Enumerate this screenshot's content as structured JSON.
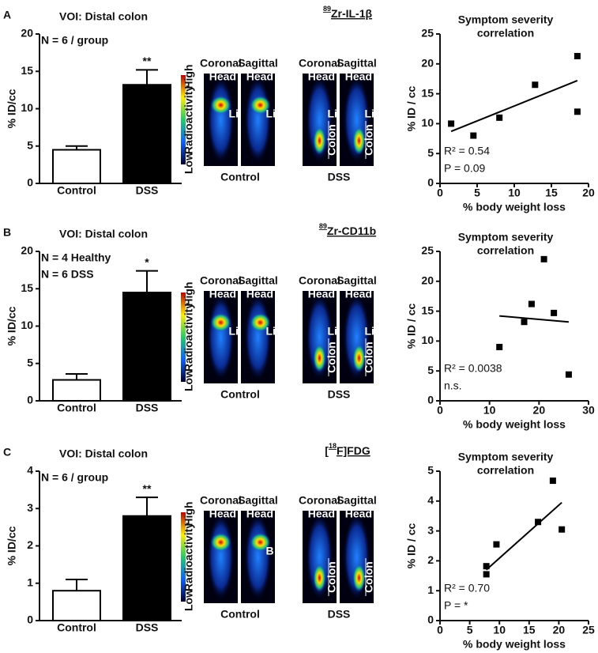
{
  "panels": [
    {
      "letter": "A",
      "isotope": "89",
      "tracer": "Zr-IL-1β",
      "groups": [
        "Control",
        "DSS"
      ],
      "colorbar": [
        "High",
        "Radioactivity",
        "Low"
      ],
      "images": [
        {
          "view": "Coronal",
          "tags": [
            "Head",
            "Li"
          ]
        },
        {
          "view": "Sagittal",
          "tags": [
            "Head",
            "Li"
          ]
        },
        {
          "view": "Coronal",
          "tags": [
            "Head",
            "Li",
            "Colon"
          ]
        },
        {
          "view": "Sagittal",
          "tags": [
            "Head",
            "Li",
            "Colon"
          ]
        }
      ]
    },
    {
      "letter": "B",
      "isotope": "89",
      "tracer": "Zr-CD11b",
      "groups": [
        "Control",
        "DSS"
      ],
      "colorbar": [
        "High",
        "Radioactivity",
        "Low"
      ],
      "images": [
        {
          "view": "Coronal",
          "tags": [
            "Head",
            "Li"
          ]
        },
        {
          "view": "Sagittal",
          "tags": [
            "Head",
            "Li"
          ]
        },
        {
          "view": "Coronal",
          "tags": [
            "Head",
            "Li",
            "Colon"
          ]
        },
        {
          "view": "Sagittal",
          "tags": [
            "Head",
            "Li",
            "Colon"
          ]
        }
      ]
    },
    {
      "letter": "C",
      "isotope": "18",
      "tracer": "F]FDG",
      "bracket": "[",
      "groups": [
        "Control",
        "DSS"
      ],
      "colorbar": [
        "High",
        "Radioactivity",
        "Low"
      ],
      "images": [
        {
          "view": "Coronal",
          "tags": [
            "Head"
          ]
        },
        {
          "view": "Sagittal",
          "tags": [
            "Head",
            "B"
          ]
        },
        {
          "view": "Coronal",
          "tags": [
            "Head",
            "Colon"
          ]
        },
        {
          "view": "Sagittal",
          "tags": [
            "Head",
            "Colon"
          ]
        }
      ]
    }
  ],
  "chart_data": [
    {
      "type": "bar",
      "title": "VOI: Distal colon",
      "notes": [
        "N = 6 / group"
      ],
      "ylabel": "% ID/cc",
      "categories": [
        "Control",
        "DSS"
      ],
      "values": [
        4.5,
        13.2
      ],
      "errors": [
        0.5,
        2.0
      ],
      "colors": [
        "#ffffff",
        "#000000"
      ],
      "significance": "**",
      "ylim": [
        0,
        20
      ],
      "yticks": [
        0,
        5,
        10,
        15,
        20
      ]
    },
    {
      "type": "scatter",
      "title": [
        "Symptom severity",
        "correlation"
      ],
      "xlabel": "% body weight loss",
      "ylabel": "% ID / cc",
      "x": [
        1.5,
        4.5,
        8,
        12.8,
        18.5,
        18.5
      ],
      "y": [
        10,
        8,
        11,
        16.5,
        21.3,
        12
      ],
      "fit": {
        "x": [
          1.5,
          18.5
        ],
        "y": [
          8.7,
          17.2
        ]
      },
      "annotations": [
        "R² = 0.54",
        "P = 0.09"
      ],
      "xlim": [
        0,
        20
      ],
      "xticks": [
        0,
        5,
        10,
        15,
        20
      ],
      "ylim": [
        0,
        25
      ],
      "yticks": [
        0,
        5,
        10,
        15,
        20,
        25
      ]
    },
    {
      "type": "bar",
      "title": "VOI: Distal colon",
      "notes": [
        "N = 4 Healthy",
        "N = 6 DSS"
      ],
      "ylabel": "% ID/cc",
      "categories": [
        "Control",
        "DSS"
      ],
      "values": [
        2.8,
        14.5
      ],
      "errors": [
        0.8,
        2.9
      ],
      "colors": [
        "#ffffff",
        "#000000"
      ],
      "significance": "*",
      "ylim": [
        0,
        20
      ],
      "yticks": [
        0,
        5,
        10,
        15,
        20
      ]
    },
    {
      "type": "scatter",
      "title": [
        "Symptom severity",
        "correlation"
      ],
      "xlabel": "% body weight loss",
      "ylabel": "% ID / cc",
      "x": [
        12,
        17,
        18.5,
        21,
        23,
        26
      ],
      "y": [
        9,
        13.2,
        16.2,
        23.7,
        14.7,
        4.4
      ],
      "fit": {
        "x": [
          12,
          26
        ],
        "y": [
          14.2,
          13.2
        ]
      },
      "annotations": [
        "R² = 0.0038",
        "n.s."
      ],
      "xlim": [
        0,
        30
      ],
      "xticks": [
        0,
        10,
        20,
        30
      ],
      "ylim": [
        0,
        25
      ],
      "yticks": [
        0,
        5,
        10,
        15,
        20,
        25
      ]
    },
    {
      "type": "bar",
      "title": "VOI: Distal colon",
      "notes": [
        "N = 6 / group"
      ],
      "ylabel": "% ID/cc",
      "categories": [
        "Control",
        "DSS"
      ],
      "values": [
        0.8,
        2.8
      ],
      "errors": [
        0.3,
        0.5
      ],
      "colors": [
        "#ffffff",
        "#000000"
      ],
      "significance": "**",
      "ylim": [
        0,
        4
      ],
      "yticks": [
        0,
        1,
        2,
        3,
        4
      ]
    },
    {
      "type": "scatter",
      "title": [
        "Symptom severity",
        "correlation"
      ],
      "xlabel": "% body weight loss",
      "ylabel": "% ID / cc",
      "x": [
        7.8,
        7.8,
        9.5,
        16.5,
        19,
        20.5
      ],
      "y": [
        1.55,
        1.82,
        2.55,
        3.3,
        4.68,
        3.05
      ],
      "fit": {
        "x": [
          7.8,
          20.5
        ],
        "y": [
          1.7,
          3.95
        ]
      },
      "annotations": [
        "R² = 0.70",
        "P = *"
      ],
      "xlim": [
        0,
        25
      ],
      "xticks": [
        0,
        5,
        10,
        15,
        20,
        25
      ],
      "ylim": [
        0,
        5
      ],
      "yticks": [
        0,
        1,
        2,
        3,
        4,
        5
      ]
    }
  ]
}
